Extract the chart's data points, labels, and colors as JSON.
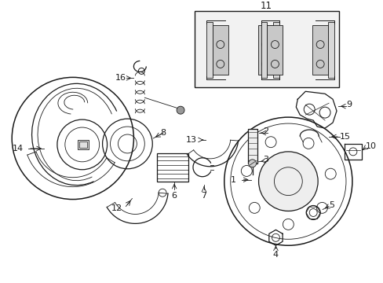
{
  "bg_color": "#ffffff",
  "lc": "#1a1a1a",
  "label_color": "#000000",
  "figsize": [
    4.89,
    3.6
  ],
  "dpi": 100,
  "xlim": [
    0,
    489
  ],
  "ylim": [
    0,
    360
  ]
}
